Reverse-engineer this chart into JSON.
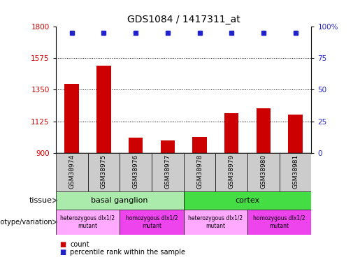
{
  "title": "GDS1084 / 1417311_at",
  "samples": [
    "GSM38974",
    "GSM38975",
    "GSM38976",
    "GSM38977",
    "GSM38978",
    "GSM38979",
    "GSM38980",
    "GSM38981"
  ],
  "counts": [
    1390,
    1520,
    1010,
    990,
    1015,
    1185,
    1220,
    1175
  ],
  "ylim_left": [
    900,
    1800
  ],
  "ylim_right": [
    0,
    100
  ],
  "yticks_left": [
    900,
    1125,
    1350,
    1575,
    1800
  ],
  "yticks_right": [
    0,
    25,
    50,
    75,
    100
  ],
  "bar_color": "#cc0000",
  "dot_color": "#2222cc",
  "tissue_row": [
    {
      "label": "basal ganglion",
      "start": 0,
      "end": 4,
      "color": "#aaeaaa"
    },
    {
      "label": "cortex",
      "start": 4,
      "end": 8,
      "color": "#44dd44"
    }
  ],
  "genotype_row": [
    {
      "label": "heterozygous dlx1/2\nmutant",
      "start": 0,
      "end": 2,
      "color": "#ffaaff"
    },
    {
      "label": "homozygous dlx1/2\nmutant",
      "start": 2,
      "end": 4,
      "color": "#ee44ee"
    },
    {
      "label": "heterozygous dlx1/2\nmutant",
      "start": 4,
      "end": 6,
      "color": "#ffaaff"
    },
    {
      "label": "homozygous dlx1/2\nmutant",
      "start": 6,
      "end": 8,
      "color": "#ee44ee"
    }
  ],
  "legend_count_label": "count",
  "legend_pct_label": "percentile rank within the sample",
  "tissue_label": "tissue",
  "geno_label": "genotype/variation",
  "sample_bg_color": "#cccccc",
  "title_fontsize": 10,
  "bar_width": 0.45
}
